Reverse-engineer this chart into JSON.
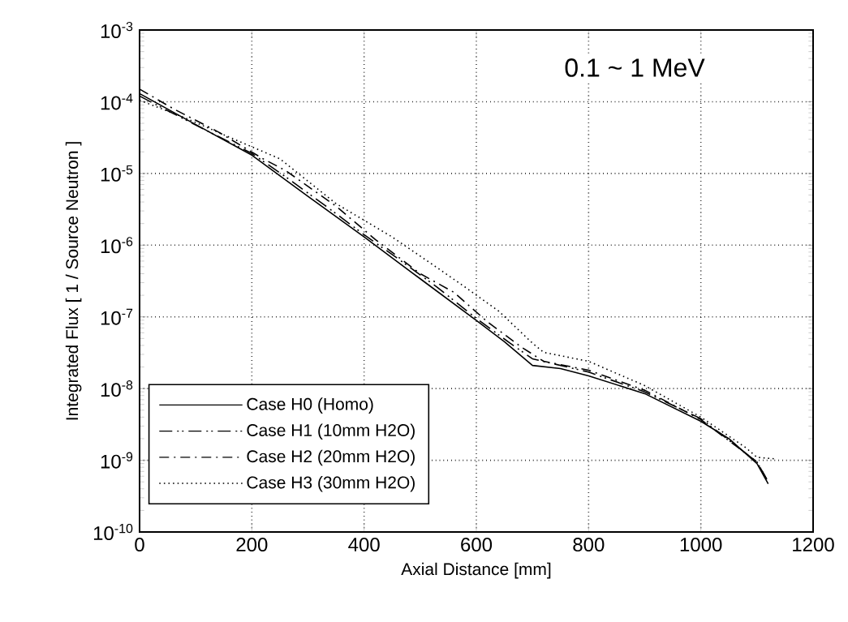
{
  "chart_data": {
    "type": "line",
    "xlabel": "Axial Distance [mm]",
    "ylabel": "Integrated Flux  [ 1 / Source Neutron ]",
    "annotations": [
      "0.1 ~ 1 MeV"
    ],
    "xlim": [
      0,
      1200
    ],
    "xticks": [
      0,
      200,
      400,
      600,
      800,
      1000,
      1200
    ],
    "ylim": [
      1e-10,
      0.001
    ],
    "yticks": [
      {
        "value": 1e-10,
        "label": "10$^{-10}$"
      },
      {
        "value": 1e-09,
        "label": "10$^{-9}$"
      },
      {
        "value": 1e-08,
        "label": "10$^{-8}$"
      },
      {
        "value": 1e-07,
        "label": "10$^{-7}$"
      },
      {
        "value": 1e-06,
        "label": "10$^{-6}$"
      },
      {
        "value": 1e-05,
        "label": "10$^{-5}$"
      },
      {
        "value": 0.0001,
        "label": "10$^{-4}$"
      },
      {
        "value": 0.001,
        "label": "10$^{-3}$"
      }
    ],
    "log": "y",
    "grid": true,
    "legend": "bottom left",
    "series": [
      {
        "name": "Case H0 (Homo)",
        "color": "#000000",
        "line_style": "solid",
        "x": [
          0,
          100,
          200,
          300,
          400,
          500,
          600,
          650,
          700,
          750,
          800,
          900,
          1000,
          1050,
          1100,
          1120
        ],
        "values": [
          0.00013,
          4.8e-05,
          1.8e-05,
          4.8e-06,
          1.3e-06,
          3.4e-07,
          8.9e-08,
          4.5e-08,
          2.1e-08,
          1.9e-08,
          1.5e-08,
          8.5e-09,
          3.5e-09,
          2e-09,
          9e-10,
          4.7e-10
        ]
      },
      {
        "name": "Case H1 (10mm H2O)",
        "color": "#000000",
        "line_style": "dashdotdotted",
        "x": [
          0,
          50,
          130,
          200,
          260,
          330,
          400,
          460,
          530,
          600,
          660,
          700,
          800,
          900,
          1000,
          1100,
          1120
        ],
        "values": [
          0.00012,
          7.5e-05,
          3.6e-05,
          1.9e-05,
          9e-06,
          3.6e-06,
          1.4e-06,
          6.5e-07,
          2.6e-07,
          9.5e-08,
          4.3e-08,
          2.6e-08,
          1.7e-08,
          9e-09,
          3.8e-09,
          9.5e-10,
          5e-10
        ]
      },
      {
        "name": "Case H2 (20mm H2O)",
        "color": "#000000",
        "line_style": "dashdotted",
        "x": [
          0,
          60,
          140,
          220,
          260,
          350,
          420,
          500,
          560,
          620,
          680,
          720,
          800,
          900,
          1000,
          1100,
          1120
        ],
        "values": [
          0.00015,
          8e-05,
          3.8e-05,
          1.6e-05,
          1.1e-05,
          3.5e-06,
          1.2e-06,
          4e-07,
          2.2e-07,
          8.5e-08,
          3.8e-08,
          2.4e-08,
          1.8e-08,
          9.5e-09,
          3.7e-09,
          9.5e-10,
          5e-10
        ]
      },
      {
        "name": "Case H3 (30mm H2O)",
        "color": "#000000",
        "line_style": "dotted",
        "x": [
          0,
          80,
          160,
          250,
          290,
          350,
          450,
          520,
          580,
          640,
          700,
          720,
          800,
          900,
          1000,
          1080,
          1100,
          1130
        ],
        "values": [
          0.000105,
          6e-05,
          3.2e-05,
          1.6e-05,
          9e-06,
          3.8e-06,
          1.3e-06,
          5.5e-07,
          2.6e-07,
          1.2e-07,
          4.3e-08,
          3.2e-08,
          2.4e-08,
          1.1e-08,
          4e-09,
          1.5e-09,
          1.1e-09,
          1.05e-09
        ]
      }
    ]
  }
}
